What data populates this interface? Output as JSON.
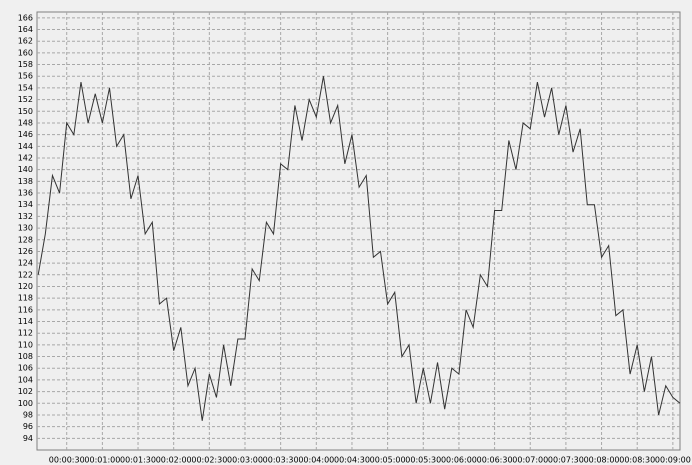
{
  "chart_data": {
    "type": "line",
    "x": [
      6,
      12,
      18,
      24,
      30,
      36,
      42,
      48,
      54,
      60,
      66,
      72,
      78,
      84,
      90,
      96,
      102,
      108,
      114,
      120,
      126,
      132,
      138,
      144,
      150,
      156,
      162,
      168,
      174,
      180,
      186,
      192,
      198,
      204,
      210,
      216,
      222,
      228,
      234,
      240,
      246,
      252,
      258,
      264,
      270,
      276,
      282,
      288,
      294,
      300,
      306,
      312,
      318,
      324,
      330,
      336,
      342,
      348,
      354,
      360,
      366,
      372,
      378,
      384,
      390,
      396,
      402,
      408,
      414,
      420,
      426,
      432,
      438,
      444,
      450,
      456,
      462,
      468,
      474,
      480,
      486,
      492,
      498,
      504,
      510,
      516,
      522,
      528,
      534,
      540,
      546
    ],
    "values": [
      122,
      129,
      139,
      136,
      148,
      146,
      155,
      148,
      153,
      148,
      154,
      144,
      146,
      135,
      139,
      129,
      131,
      117,
      118,
      109,
      113,
      103,
      106,
      97,
      105,
      101,
      110,
      103,
      111,
      111,
      123,
      121,
      131,
      129,
      141,
      140,
      151,
      145,
      152,
      149,
      156,
      148,
      151,
      141,
      146,
      137,
      139,
      125,
      126,
      117,
      119,
      108,
      110,
      100,
      106,
      100,
      107,
      99,
      106,
      105,
      116,
      113,
      122,
      120,
      133,
      133,
      145,
      140,
      148,
      147,
      155,
      149,
      154,
      146,
      151,
      143,
      147,
      134,
      134,
      125,
      127,
      115,
      116,
      105,
      110,
      102,
      108,
      98,
      103,
      101,
      100
    ],
    "color": "#333333",
    "xlim": [
      5,
      546
    ],
    "ylim": [
      92,
      167
    ],
    "xticks": [
      {
        "value": 30,
        "label": "00:00:30"
      },
      {
        "value": 60,
        "label": "00:01:00"
      },
      {
        "value": 90,
        "label": "00:01:30"
      },
      {
        "value": 120,
        "label": "00:02:00"
      },
      {
        "value": 150,
        "label": "00:02:30"
      },
      {
        "value": 180,
        "label": "00:03:00"
      },
      {
        "value": 210,
        "label": "00:03:30"
      },
      {
        "value": 240,
        "label": "00:04:00"
      },
      {
        "value": 270,
        "label": "00:04:30"
      },
      {
        "value": 300,
        "label": "00:05:00"
      },
      {
        "value": 330,
        "label": "00:05:30"
      },
      {
        "value": 360,
        "label": "00:06:00"
      },
      {
        "value": 390,
        "label": "00:06:30"
      },
      {
        "value": 420,
        "label": "00:07:00"
      },
      {
        "value": 450,
        "label": "00:07:30"
      },
      {
        "value": 480,
        "label": "00:08:00"
      },
      {
        "value": 510,
        "label": "00:08:30"
      },
      {
        "value": 540,
        "label": "00:09:00"
      }
    ],
    "yticks": [
      94,
      96,
      98,
      100,
      102,
      104,
      106,
      108,
      110,
      112,
      114,
      116,
      118,
      120,
      122,
      124,
      126,
      128,
      130,
      132,
      134,
      136,
      138,
      140,
      142,
      144,
      146,
      148,
      150,
      152,
      154,
      156,
      158,
      160,
      162,
      164,
      166
    ],
    "grid": true
  }
}
